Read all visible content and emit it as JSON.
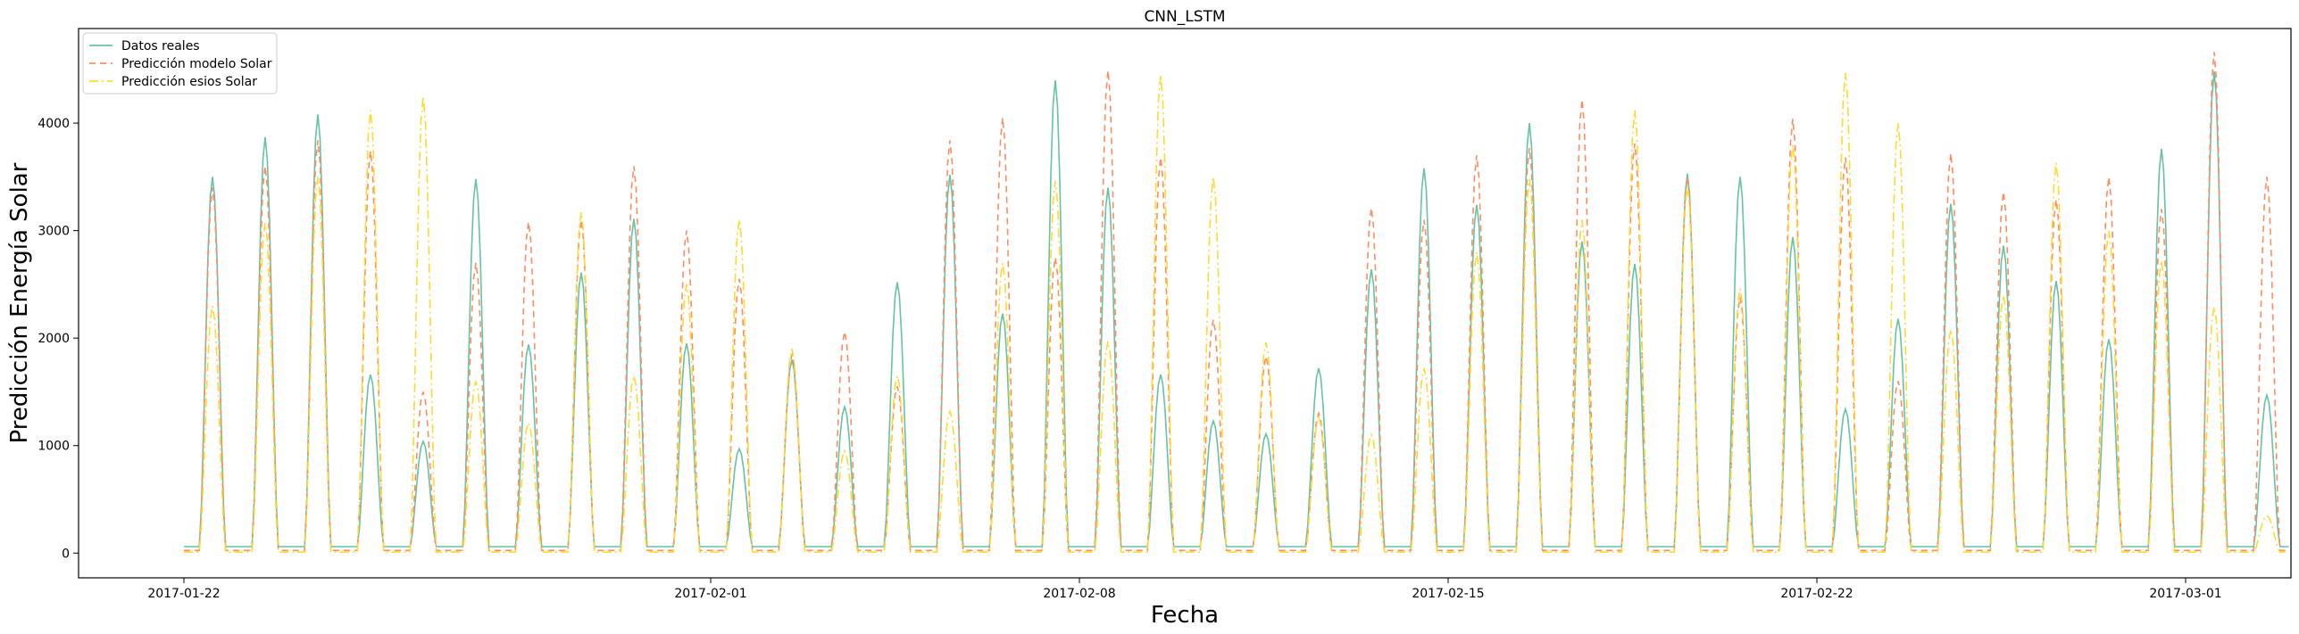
{
  "chart_data": {
    "type": "line",
    "title": "CNN_LSTM",
    "xlabel": "Fecha",
    "ylabel": "Predicción Energía Solar",
    "xlim": [
      "2017-01-20",
      "2017-03-03"
    ],
    "ylim": [
      -230,
      4880
    ],
    "grid": false,
    "legend_position": "top-left",
    "x_ticks": [
      "2017-01-22",
      "2017-02-01",
      "2017-02-08",
      "2017-02-15",
      "2017-02-22",
      "2017-03-01"
    ],
    "y_ticks": [
      0,
      1000,
      2000,
      3000,
      4000
    ],
    "days": [
      "2017-01-22",
      "2017-01-23",
      "2017-01-24",
      "2017-01-25",
      "2017-01-26",
      "2017-01-27",
      "2017-01-28",
      "2017-01-29",
      "2017-01-30",
      "2017-01-31",
      "2017-02-01",
      "2017-02-02",
      "2017-02-03",
      "2017-02-04",
      "2017-02-05",
      "2017-02-06",
      "2017-02-07",
      "2017-02-08",
      "2017-02-09",
      "2017-02-10",
      "2017-02-11",
      "2017-02-12",
      "2017-02-13",
      "2017-02-14",
      "2017-02-15",
      "2017-02-16",
      "2017-02-17",
      "2017-02-18",
      "2017-02-19",
      "2017-02-20",
      "2017-02-21",
      "2017-02-22",
      "2017-02-23",
      "2017-02-24",
      "2017-02-25",
      "2017-02-26",
      "2017-02-27",
      "2017-02-28",
      "2017-03-01",
      "2017-03-02"
    ],
    "series": [
      {
        "name": "Datos reales",
        "color": "#66c2a5",
        "style": "solid",
        "daily_peak": [
          3500,
          3870,
          4080,
          1660,
          1040,
          3480,
          1940,
          2610,
          3110,
          1950,
          970,
          1800,
          1360,
          2520,
          3520,
          2230,
          4400,
          3400,
          1660,
          1230,
          1110,
          1720,
          2640,
          3580,
          3240,
          4000,
          2900,
          2690,
          3530,
          3500,
          2940,
          1340,
          2180,
          3250,
          2860,
          2530,
          1990,
          3760,
          4480,
          1470
        ],
        "night_level": 60
      },
      {
        "name": "Predicción modelo Solar",
        "color": "#fc8d62",
        "style": "dashed",
        "daily_peak": [
          3400,
          3600,
          3840,
          3740,
          1500,
          2700,
          3080,
          3100,
          3600,
          3000,
          2550,
          1850,
          2060,
          1550,
          3840,
          4050,
          2750,
          4490,
          3680,
          2170,
          1830,
          1300,
          3210,
          3100,
          3700,
          3770,
          4220,
          3810,
          3500,
          2380,
          4040,
          3680,
          1600,
          3720,
          3360,
          3290,
          3500,
          3200,
          4660,
          3500
        ],
        "night_level": 25
      },
      {
        "name": "Predicción esios Solar",
        "color": "#ffd92f",
        "style": "dashdot",
        "daily_peak": [
          2300,
          3070,
          3500,
          4120,
          4250,
          1600,
          1210,
          3170,
          1650,
          2500,
          3100,
          1900,
          950,
          1650,
          1320,
          2700,
          3460,
          1970,
          4450,
          3500,
          1960,
          1260,
          1100,
          1720,
          2800,
          3480,
          3100,
          4120,
          3420,
          2460,
          3800,
          4470,
          4000,
          2080,
          2400,
          3630,
          3000,
          2720,
          2290,
          350
        ],
        "night_level": 10
      }
    ]
  }
}
